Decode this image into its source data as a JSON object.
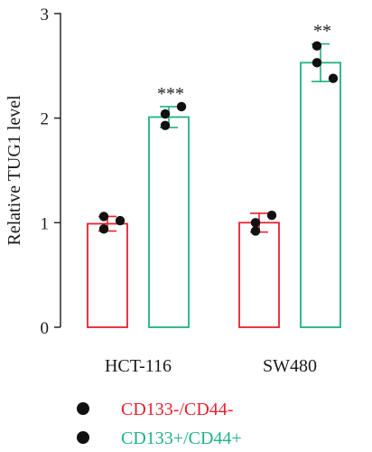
{
  "chart_data": {
    "type": "bar",
    "ylabel": "Relative TUG1 level",
    "ylim": [
      0,
      3
    ],
    "yticks": [
      0,
      1,
      2,
      3
    ],
    "categories": [
      "HCT-116",
      "SW480"
    ],
    "series": [
      {
        "name": "CD133-/CD44-",
        "color": "#e8212f",
        "values": [
          0.99,
          1.0
        ],
        "errors": [
          0.07,
          0.09
        ],
        "points": [
          [
            1.06,
            0.94,
            1.02
          ],
          [
            1.0,
            0.92,
            1.07
          ]
        ],
        "significance": [
          "",
          ""
        ]
      },
      {
        "name": "CD133+/CD44+",
        "color": "#1fb37e",
        "values": [
          2.01,
          2.53
        ],
        "errors": [
          0.1,
          0.18
        ],
        "points": [
          [
            2.04,
            1.93,
            2.11
          ],
          [
            2.69,
            2.53,
            2.38
          ]
        ],
        "significance": [
          "***",
          "**"
        ]
      }
    ],
    "grid": false,
    "legend_position": "bottom-left"
  }
}
